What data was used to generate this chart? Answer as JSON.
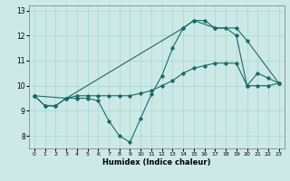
{
  "title": "",
  "xlabel": "Humidex (Indice chaleur)",
  "background_color": "#cce9e7",
  "grid_color": "#aad4d0",
  "line_color": "#1a6b65",
  "xlim": [
    -0.5,
    23.5
  ],
  "ylim": [
    7.5,
    13.2
  ],
  "xticks": [
    0,
    1,
    2,
    3,
    4,
    5,
    6,
    7,
    8,
    9,
    10,
    11,
    12,
    13,
    14,
    15,
    16,
    17,
    18,
    19,
    20,
    21,
    22,
    23
  ],
  "yticks": [
    8,
    9,
    10,
    11,
    12,
    13
  ],
  "line1_x": [
    0,
    1,
    2,
    3,
    4,
    5,
    6,
    7,
    8,
    9,
    10,
    11,
    12,
    13,
    14,
    15,
    16,
    17,
    18,
    19,
    20,
    21,
    22,
    23
  ],
  "line1_y": [
    9.6,
    9.2,
    9.2,
    9.5,
    9.5,
    9.5,
    9.4,
    8.6,
    8.0,
    7.75,
    8.7,
    9.65,
    10.4,
    11.5,
    12.3,
    12.6,
    12.6,
    12.3,
    12.3,
    12.0,
    10.0,
    10.5,
    10.3,
    10.1
  ],
  "line2_x": [
    0,
    1,
    2,
    3,
    4,
    5,
    6,
    7,
    8,
    9,
    10,
    11,
    12,
    13,
    14,
    15,
    16,
    17,
    18,
    19,
    20,
    21,
    22,
    23
  ],
  "line2_y": [
    9.6,
    9.2,
    9.2,
    9.5,
    9.6,
    9.6,
    9.6,
    9.6,
    9.6,
    9.6,
    9.7,
    9.8,
    10.0,
    10.2,
    10.5,
    10.7,
    10.8,
    10.9,
    10.9,
    10.9,
    10.0,
    10.0,
    10.0,
    10.1
  ],
  "line3_x": [
    0,
    3,
    14,
    15,
    17,
    19,
    20,
    23
  ],
  "line3_y": [
    9.6,
    9.5,
    12.3,
    12.6,
    12.3,
    12.3,
    11.8,
    10.1
  ]
}
